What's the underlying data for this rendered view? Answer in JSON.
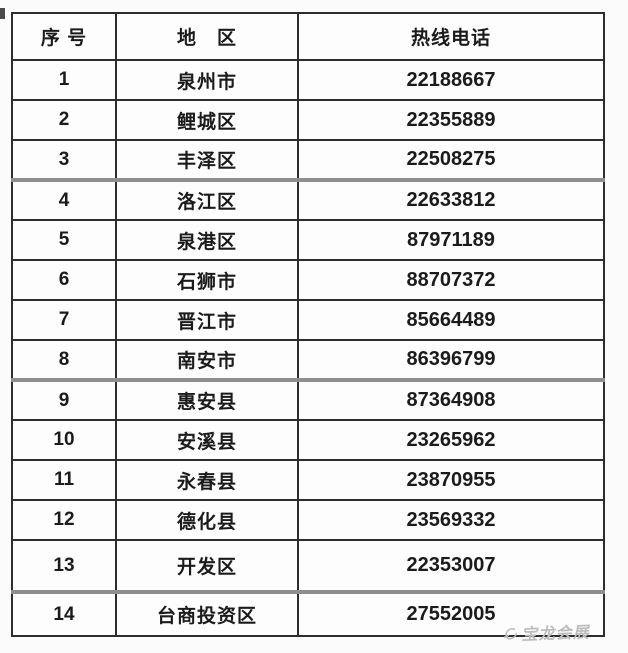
{
  "chart_data": {
    "type": "table",
    "title": "",
    "columns": [
      "序 号",
      "地　区",
      "热线电话"
    ],
    "rows": [
      [
        "1",
        "泉州市",
        "22188667"
      ],
      [
        "2",
        "鲤城区",
        "22355889"
      ],
      [
        "3",
        "丰泽区",
        "22508275"
      ],
      [
        "4",
        "洛江区",
        "22633812"
      ],
      [
        "5",
        "泉港区",
        "87971189"
      ],
      [
        "6",
        "石狮市",
        "88707372"
      ],
      [
        "7",
        "晋江市",
        "85664489"
      ],
      [
        "8",
        "南安市",
        "86396799"
      ],
      [
        "9",
        "惠安县",
        "87364908"
      ],
      [
        "10",
        "安溪县",
        "23265962"
      ],
      [
        "11",
        "永春县",
        "23870955"
      ],
      [
        "12",
        "德化县",
        "23569332"
      ],
      [
        "13",
        "开发区",
        "22353007"
      ],
      [
        "14",
        "台商投资区",
        "27552005"
      ]
    ],
    "layout": {
      "grid": "full-borders",
      "thick_separators_after_rows": [
        3,
        8,
        13
      ],
      "header_bold": true
    }
  },
  "watermark": {
    "text": "宝龙会展",
    "icon": "swoosh-circle-logo"
  },
  "colors": {
    "background": "#fbfbfb",
    "cell_background": "#fdfdfd",
    "border": "#2d2d2d",
    "thick_separator": "#8e8e8e",
    "text": "#1b1b1b",
    "watermark": "#bdbdbd"
  }
}
